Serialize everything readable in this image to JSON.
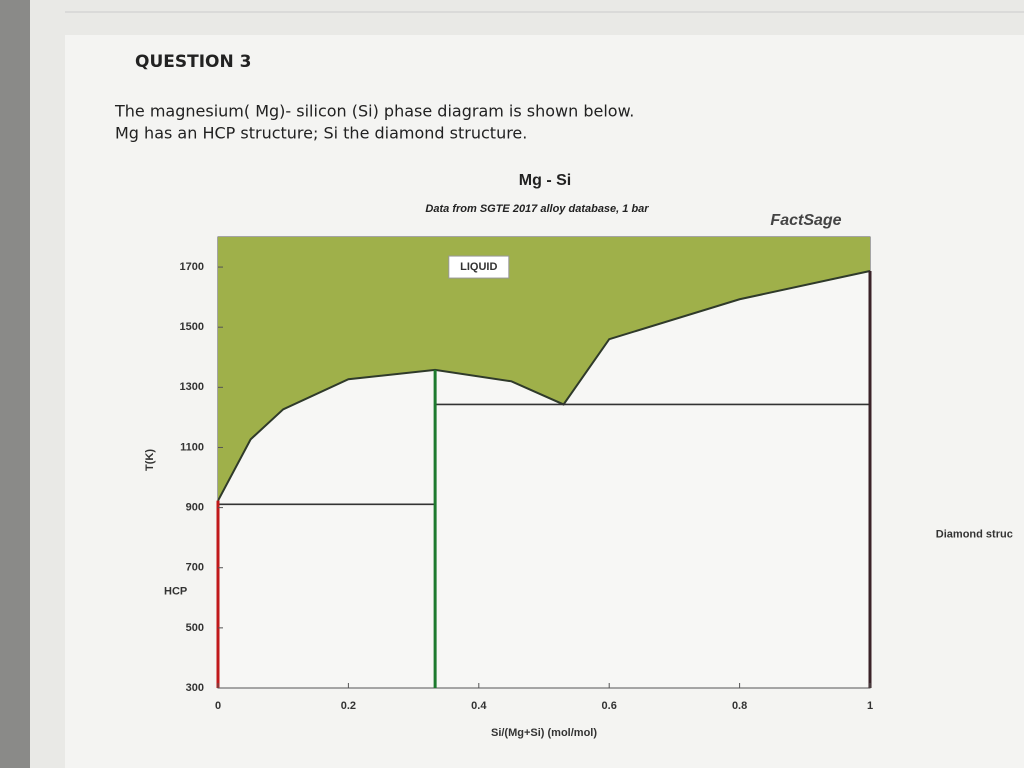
{
  "question": {
    "heading": "QUESTION 3",
    "lines": [
      "The magnesium( Mg)- silicon (Si) phase diagram is shown below.",
      "Mg has an HCP structure; Si the diamond structure."
    ]
  },
  "chart_data": {
    "type": "phase-diagram",
    "title": "Mg - Si",
    "subtitle": "Data from SGTE 2017 alloy database, 1 bar",
    "brand": "FactSage",
    "x_label": "Si/(Mg+Si) (mol/mol)",
    "y_label": "T(K)",
    "xlim": [
      0,
      1
    ],
    "xticks": [
      0,
      0.2,
      0.4,
      0.6,
      0.8,
      1
    ],
    "ylim": [
      300,
      1800
    ],
    "yticks": [
      300,
      500,
      700,
      900,
      1100,
      1300,
      1500,
      1700
    ],
    "liquidus": {
      "color": "#2f3a2a",
      "fill": "#9fb04a",
      "x": [
        0,
        0.05,
        0.1,
        0.2,
        0.333,
        0.45,
        0.53,
        0.6,
        0.8,
        1
      ],
      "values": [
        923,
        1127,
        1227,
        1327,
        1358,
        1320,
        1243,
        1460,
        1593,
        1687
      ]
    },
    "segments": [
      {
        "x": [
          0,
          0.333
        ],
        "values": [
          911,
          911
        ],
        "color": "#333333"
      },
      {
        "x": [
          0.333,
          1
        ],
        "values": [
          1243,
          1243
        ],
        "color": "#333333"
      },
      {
        "x": [
          0.333,
          0.333
        ],
        "values": [
          300,
          1358
        ],
        "color": "#1d7a2e"
      },
      {
        "x": [
          0,
          0
        ],
        "values": [
          300,
          923
        ],
        "color": "#c0181b"
      },
      {
        "x": [
          1,
          1
        ],
        "values": [
          300,
          1687
        ],
        "color": "#3a2228"
      }
    ],
    "labels": [
      {
        "text": "LIQUID",
        "x": 0.4,
        "y": 1700
      },
      {
        "text": "HCP",
        "x": -0.065,
        "y": 620,
        "color": "#c0181b"
      },
      {
        "text": "Diamond struc",
        "x": 1.16,
        "y": 810
      }
    ]
  }
}
